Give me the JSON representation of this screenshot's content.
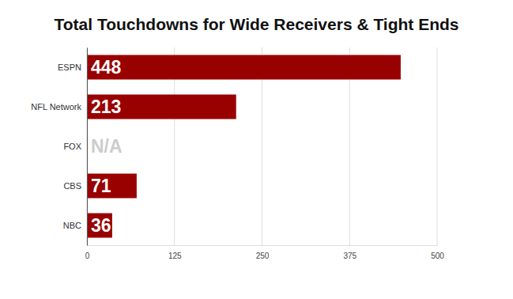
{
  "chart_data": {
    "type": "bar",
    "orientation": "horizontal",
    "title": "Total Touchdowns for Wide Receivers & Tight Ends",
    "categories": [
      "ESPN",
      "NFL Network",
      "FOX",
      "CBS",
      "NBC"
    ],
    "values": [
      448,
      213,
      null,
      71,
      36
    ],
    "value_labels": [
      "448",
      "213",
      "N/A",
      "71",
      "36"
    ],
    "color": "#990000",
    "xlim": [
      0,
      500
    ],
    "xticks": [
      0,
      125,
      250,
      375,
      500
    ],
    "grid": true,
    "data_labels": true
  }
}
